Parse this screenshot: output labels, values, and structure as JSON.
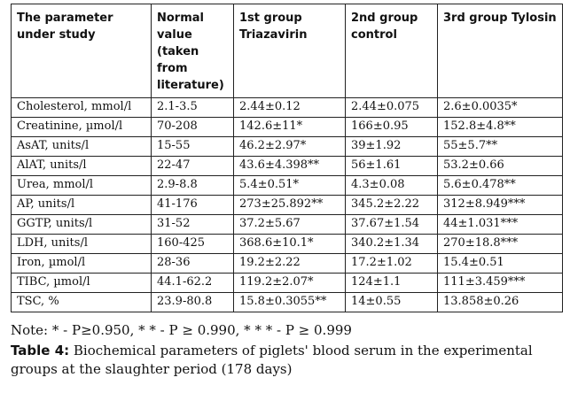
{
  "table": {
    "headers": [
      "The parameter under study",
      "Normal value (taken from literature)",
      "1st group Triazavirin",
      "2nd group control",
      "3rd group Tylosin"
    ],
    "rows": [
      [
        "Cholesterol, mmol/l",
        "2.1-3.5",
        "2.44±0.12",
        "2.44±0.075",
        "2.6±0.0035*"
      ],
      [
        "Creatinine, µmol/l",
        "70-208",
        "142.6±11*",
        "166±0.95",
        "152.8±4.8**"
      ],
      [
        "AsAT, units/l",
        "15-55",
        "46.2±2.97*",
        "39±1.92",
        "55±5.7**"
      ],
      [
        "AlAT, units/l",
        "22-47",
        "43.6±4.398**",
        "56±1.61",
        "53.2±0.66"
      ],
      [
        "Urea, mmol/l",
        "2.9-8.8",
        "5.4±0.51*",
        "4.3±0.08",
        "5.6±0.478**"
      ],
      [
        "AP, units/l",
        "41-176",
        "273±25.892**",
        "345.2±2.22",
        "312±8.949***"
      ],
      [
        "GGTP, units/l",
        "31-52",
        "37.2±5.67",
        "37.67±1.54",
        "44±1.031***"
      ],
      [
        "LDH, units/l",
        "160-425",
        "368.6±10.1*",
        "340.2±1.34",
        "270±18.8***"
      ],
      [
        "Iron, µmol/l",
        "28-36",
        "19.2±2.22",
        "17.2±1.02",
        "15.4±0.51"
      ],
      [
        "TIBC, µmol/l",
        "44.1-62.2",
        "119.2±2.07*",
        "124±1.1",
        "111±3.459***"
      ],
      [
        "TSC, %",
        "23.9-80.8",
        "15.8±0.3055**",
        "14±0.55",
        "13.858±0.26"
      ]
    ]
  },
  "note": "Note: * - P≥0.950, * * - P ≥ 0.990, * * * - P ≥ 0.999",
  "caption": {
    "label": "Table 4:",
    "text": " Biochemical parameters of piglets' blood serum in the experimental groups at the slaughter period (178 days)"
  }
}
